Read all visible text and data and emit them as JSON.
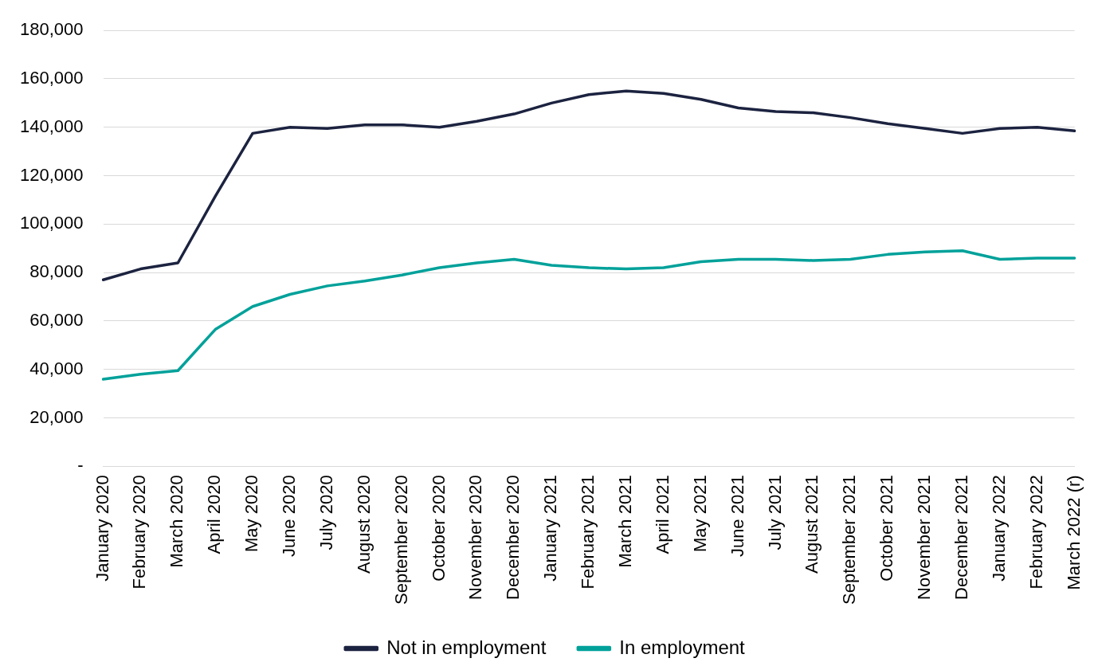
{
  "chart_data": {
    "type": "line",
    "categories": [
      "January 2020",
      "February 2020",
      "March 2020",
      "April 2020",
      "May 2020",
      "June 2020",
      "July 2020",
      "August 2020",
      "September 2020",
      "October 2020",
      "November 2020",
      "December 2020",
      "January 2021",
      "February 2021",
      "March 2021",
      "April 2021",
      "May 2021",
      "June 2021",
      "July 2021",
      "August 2021",
      "September 2021",
      "October 2021",
      "November 2021",
      "December 2021",
      "January 2022",
      "February 2022",
      "March 2022 (r)"
    ],
    "series": [
      {
        "name": "Not in employment",
        "color": "#1c2340",
        "values": [
          77000,
          81500,
          84000,
          111500,
          137500,
          140000,
          139500,
          141000,
          141000,
          140000,
          142500,
          145500,
          150000,
          153500,
          155000,
          154000,
          151500,
          148000,
          146500,
          146000,
          144000,
          141500,
          139500,
          137500,
          139500,
          140000,
          138500
        ]
      },
      {
        "name": "In employment",
        "color": "#00a19a",
        "values": [
          36000,
          38000,
          39500,
          56500,
          66000,
          71000,
          74500,
          76500,
          79000,
          82000,
          84000,
          85500,
          83000,
          82000,
          81500,
          82000,
          84500,
          85500,
          85500,
          85000,
          85500,
          87500,
          88500,
          89000,
          85500,
          86000,
          86000
        ]
      }
    ],
    "ylim": [
      0,
      180000
    ],
    "yticks": [
      {
        "value": 0,
        "label": "-"
      },
      {
        "value": 20000,
        "label": "20,000"
      },
      {
        "value": 40000,
        "label": "40,000"
      },
      {
        "value": 60000,
        "label": "60,000"
      },
      {
        "value": 80000,
        "label": "80,000"
      },
      {
        "value": 100000,
        "label": "100,000"
      },
      {
        "value": 120000,
        "label": "120,000"
      },
      {
        "value": 140000,
        "label": "140,000"
      },
      {
        "value": 160000,
        "label": "160,000"
      },
      {
        "value": 180000,
        "label": "180,000"
      }
    ],
    "grid": "y",
    "legend": "bottom",
    "marker": "none",
    "line_style": "solid"
  }
}
